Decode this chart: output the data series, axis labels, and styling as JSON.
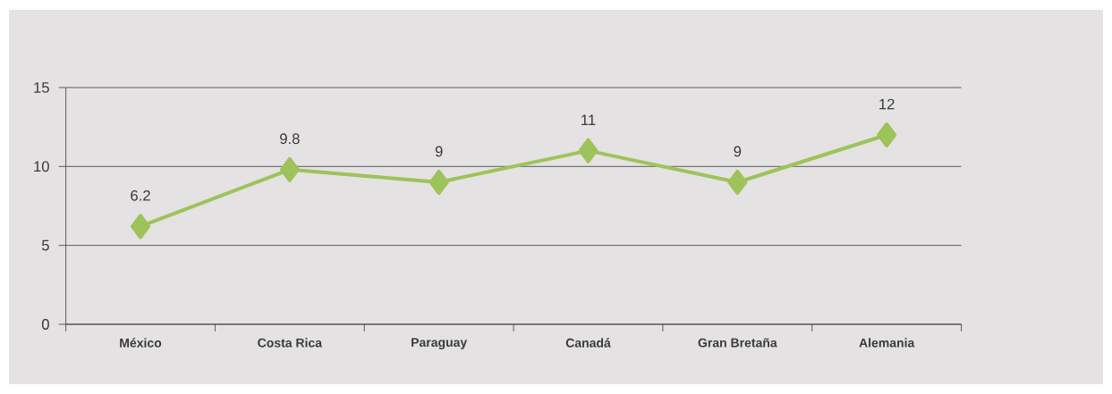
{
  "chart_data": {
    "type": "line",
    "categories": [
      "México",
      "Costa Rica",
      "Paraguay",
      "Canadá",
      "Gran Bretaña",
      "Alemania"
    ],
    "values": [
      6.2,
      9.8,
      9,
      11,
      9,
      12
    ],
    "color": "#9dc35a",
    "ylim": [
      0,
      15
    ],
    "yticks": [
      0,
      5,
      10,
      15
    ],
    "grid": "y",
    "marker": "diamond",
    "line_style": "solid",
    "data_labels": true
  }
}
